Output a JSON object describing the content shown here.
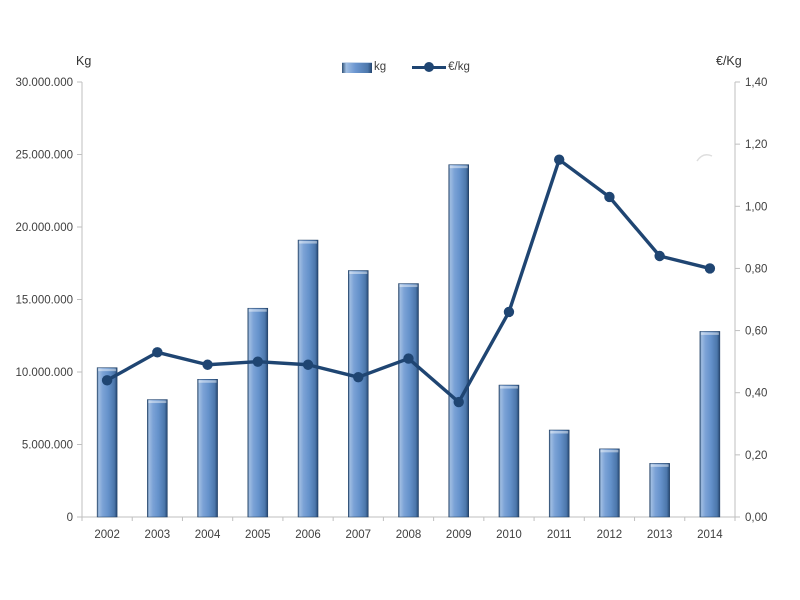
{
  "colors": {
    "bar_fill": "#6593ce",
    "bar_edge": "#1c3a5f",
    "line": "#1f4572",
    "axis": "#bfbfbf",
    "text": "#404040",
    "background": "#ffffff"
  },
  "chart_data": {
    "type": "bar+line",
    "title": "",
    "categories": [
      "2002",
      "2003",
      "2004",
      "2005",
      "2006",
      "2007",
      "2008",
      "2009",
      "2010",
      "2011",
      "2012",
      "2013",
      "2014"
    ],
    "series": [
      {
        "name": "kg",
        "type": "bar",
        "axis": "left",
        "color": "#6593ce",
        "values": [
          10300000,
          8100000,
          9500000,
          14400000,
          19100000,
          17000000,
          16100000,
          24300000,
          9100000,
          6000000,
          4700000,
          3700000,
          12800000
        ]
      },
      {
        "name": "€/kg",
        "type": "line",
        "axis": "right",
        "color": "#1f4572",
        "values": [
          0.44,
          0.53,
          0.49,
          0.5,
          0.49,
          0.45,
          0.51,
          0.37,
          0.66,
          1.15,
          1.03,
          0.84,
          0.8
        ]
      }
    ],
    "left_axis": {
      "title": "Kg",
      "min": 0,
      "max": 30000000,
      "step": 5000000,
      "tick_labels": [
        "0",
        "5.000.000",
        "10.000.000",
        "15.000.000",
        "20.000.000",
        "25.000.000",
        "30.000.000"
      ]
    },
    "right_axis": {
      "title": "€/Kg",
      "min": 0,
      "max": 1.4,
      "step": 0.2,
      "tick_labels": [
        "0,00",
        "0,20",
        "0,40",
        "0,60",
        "0,80",
        "1,00",
        "1,20",
        "1,40"
      ]
    },
    "grid": false,
    "legend_position": "top-center"
  }
}
